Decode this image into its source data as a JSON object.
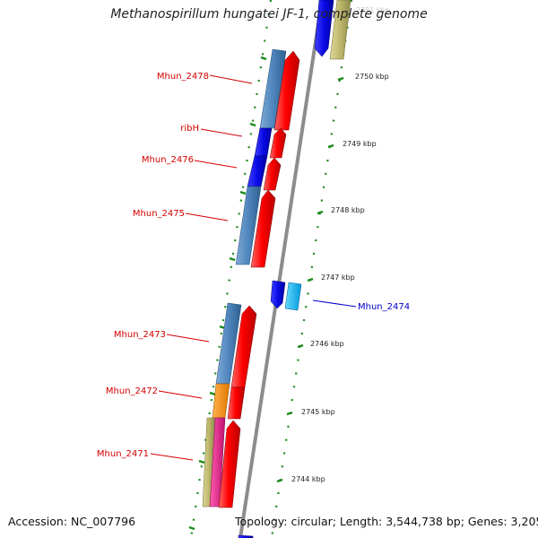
{
  "title": "Methanospirillum hungatei JF-1, complete genome",
  "footer": {
    "accession": "Accession: NC_007796",
    "topology": "Topology: circular; Length: 3,544,738 bp; Genes: 3,205"
  },
  "scale_ticks": [
    "2751 kbp",
    "2750 kbp",
    "2749 kbp",
    "2748 kbp",
    "2747 kbp",
    "2746 kbp",
    "2745 kbp",
    "2744 kbp"
  ],
  "gene_labels": {
    "mhun_2478": "Mhun_2478",
    "ribh": "ribH",
    "mhun_2476": "Mhun_2476",
    "mhun_2475": "Mhun_2475",
    "mhun_2474": "Mhun_2474",
    "mhun_2473": "Mhun_2473",
    "mhun_2472": "Mhun_2472",
    "mhun_2471": "Mhun_2471"
  },
  "colors": {
    "backbone": "#8c8c8c",
    "tick_green": "#1a8a1a",
    "label_red": "#d40000",
    "label_blue": "#0000cc",
    "feature_steelblue": "#4f86bd",
    "feature_blue": "#0a0ae6",
    "feature_red": "#f00000",
    "feature_khaki": "#bdb76b",
    "feature_orange": "#ff8c00",
    "feature_magenta": "#e81c8c",
    "feature_cyan": "#00bfff"
  }
}
